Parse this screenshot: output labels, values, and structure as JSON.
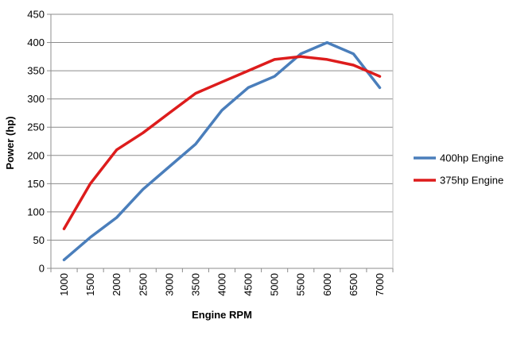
{
  "chart_data": {
    "type": "line",
    "xlabel": "Engine RPM",
    "ylabel": "Power (hp)",
    "ylim": [
      0,
      450
    ],
    "yticks": [
      "0",
      "50",
      "100",
      "150",
      "200",
      "250",
      "300",
      "350",
      "400",
      "450"
    ],
    "categories": [
      "1000",
      "1500",
      "2000",
      "2500",
      "3000",
      "3500",
      "4000",
      "4500",
      "5000",
      "5500",
      "6000",
      "6500",
      "7000"
    ],
    "grid": true,
    "legend_position": "right",
    "series": [
      {
        "name": "400hp Engine",
        "color": "#4a7ebb",
        "values": [
          15,
          55,
          90,
          140,
          180,
          220,
          280,
          320,
          340,
          380,
          400,
          380,
          320
        ]
      },
      {
        "name": "375hp Engine",
        "color": "#dd1c1c",
        "values": [
          70,
          150,
          210,
          240,
          275,
          310,
          330,
          350,
          370,
          375,
          370,
          360,
          340
        ]
      }
    ]
  }
}
